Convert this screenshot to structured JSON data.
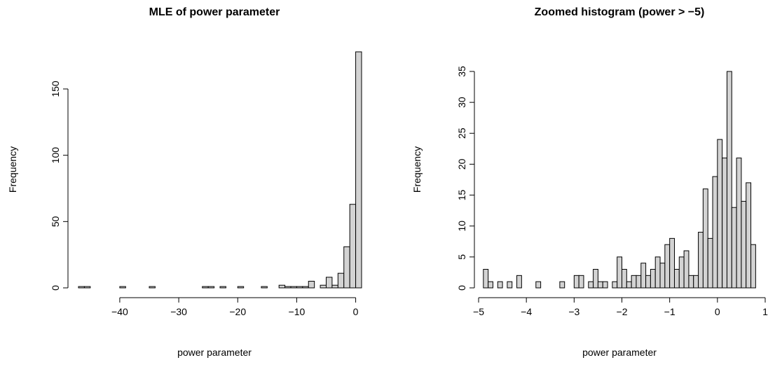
{
  "charts": [
    {
      "type": "bar",
      "title": "MLE of power parameter",
      "xlabel": "power parameter",
      "ylabel": "Frequency",
      "xlim": [
        -47,
        1
      ],
      "ylim": [
        0,
        178
      ],
      "xticks": [
        -40,
        -30,
        -20,
        -10,
        0
      ],
      "xtick_labels": [
        "−40",
        "−30",
        "−20",
        "−10",
        "0"
      ],
      "yticks": [
        0,
        50,
        100,
        150
      ],
      "ytick_labels": [
        "0",
        "50",
        "100",
        "150"
      ],
      "bin_width": 1,
      "bin_starts": [
        -47,
        -46,
        -45,
        -44,
        -43,
        -42,
        -41,
        -40,
        -39,
        -38,
        -37,
        -36,
        -35,
        -34,
        -33,
        -32,
        -31,
        -30,
        -29,
        -28,
        -27,
        -26,
        -25,
        -24,
        -23,
        -22,
        -21,
        -20,
        -19,
        -18,
        -17,
        -16,
        -15,
        -14,
        -13,
        -12,
        -11,
        -10,
        -9,
        -8,
        -7,
        -6,
        -5,
        -4,
        -3,
        -2,
        -1,
        0
      ],
      "counts": [
        1,
        1,
        0,
        0,
        0,
        0,
        0,
        1,
        0,
        0,
        0,
        0,
        1,
        0,
        0,
        0,
        0,
        0,
        0,
        0,
        0,
        1,
        1,
        0,
        1,
        0,
        0,
        1,
        0,
        0,
        0,
        1,
        0,
        0,
        2,
        1,
        1,
        1,
        1,
        5,
        0,
        2,
        8,
        2,
        11,
        31,
        63,
        178
      ]
    },
    {
      "type": "bar",
      "title": "Zoomed histogram (power > −5)",
      "xlabel": "power parameter",
      "ylabel": "Frequency",
      "xlim": [
        -5,
        1
      ],
      "ylim": [
        0,
        35
      ],
      "xticks": [
        -5,
        -4,
        -3,
        -2,
        -1,
        0,
        1
      ],
      "xtick_labels": [
        "−5",
        "−4",
        "−3",
        "−2",
        "−1",
        "0",
        "1"
      ],
      "yticks": [
        0,
        5,
        10,
        15,
        20,
        25,
        30,
        35
      ],
      "ytick_labels": [
        "0",
        "5",
        "10",
        "15",
        "20",
        "25",
        "30",
        "35"
      ],
      "bin_width": 0.1,
      "bin_starts": [
        -4.9,
        -4.8,
        -4.7,
        -4.6,
        -4.5,
        -4.4,
        -4.3,
        -4.2,
        -4.1,
        -4.0,
        -3.9,
        -3.8,
        -3.7,
        -3.6,
        -3.5,
        -3.4,
        -3.3,
        -3.2,
        -3.1,
        -3.0,
        -2.9,
        -2.8,
        -2.7,
        -2.6,
        -2.5,
        -2.4,
        -2.3,
        -2.2,
        -2.1,
        -2.0,
        -1.9,
        -1.8,
        -1.7,
        -1.6,
        -1.5,
        -1.4,
        -1.3,
        -1.2,
        -1.1,
        -1.0,
        -0.9,
        -0.8,
        -0.7,
        -0.6,
        -0.5,
        -0.4,
        -0.3,
        -0.2,
        -0.1,
        0.0,
        0.1,
        0.2,
        0.3,
        0.4,
        0.5,
        0.6,
        0.7,
        0.8,
        0.9
      ],
      "counts": [
        3,
        1,
        0,
        1,
        0,
        1,
        0,
        2,
        0,
        0,
        0,
        1,
        0,
        0,
        0,
        0,
        1,
        0,
        0,
        2,
        2,
        0,
        1,
        3,
        1,
        1,
        0,
        1,
        5,
        3,
        1,
        2,
        2,
        4,
        2,
        3,
        5,
        4,
        7,
        8,
        3,
        5,
        6,
        2,
        2,
        9,
        16,
        8,
        18,
        24,
        21,
        35,
        13,
        21,
        14,
        17,
        7,
        0,
        0
      ]
    }
  ]
}
